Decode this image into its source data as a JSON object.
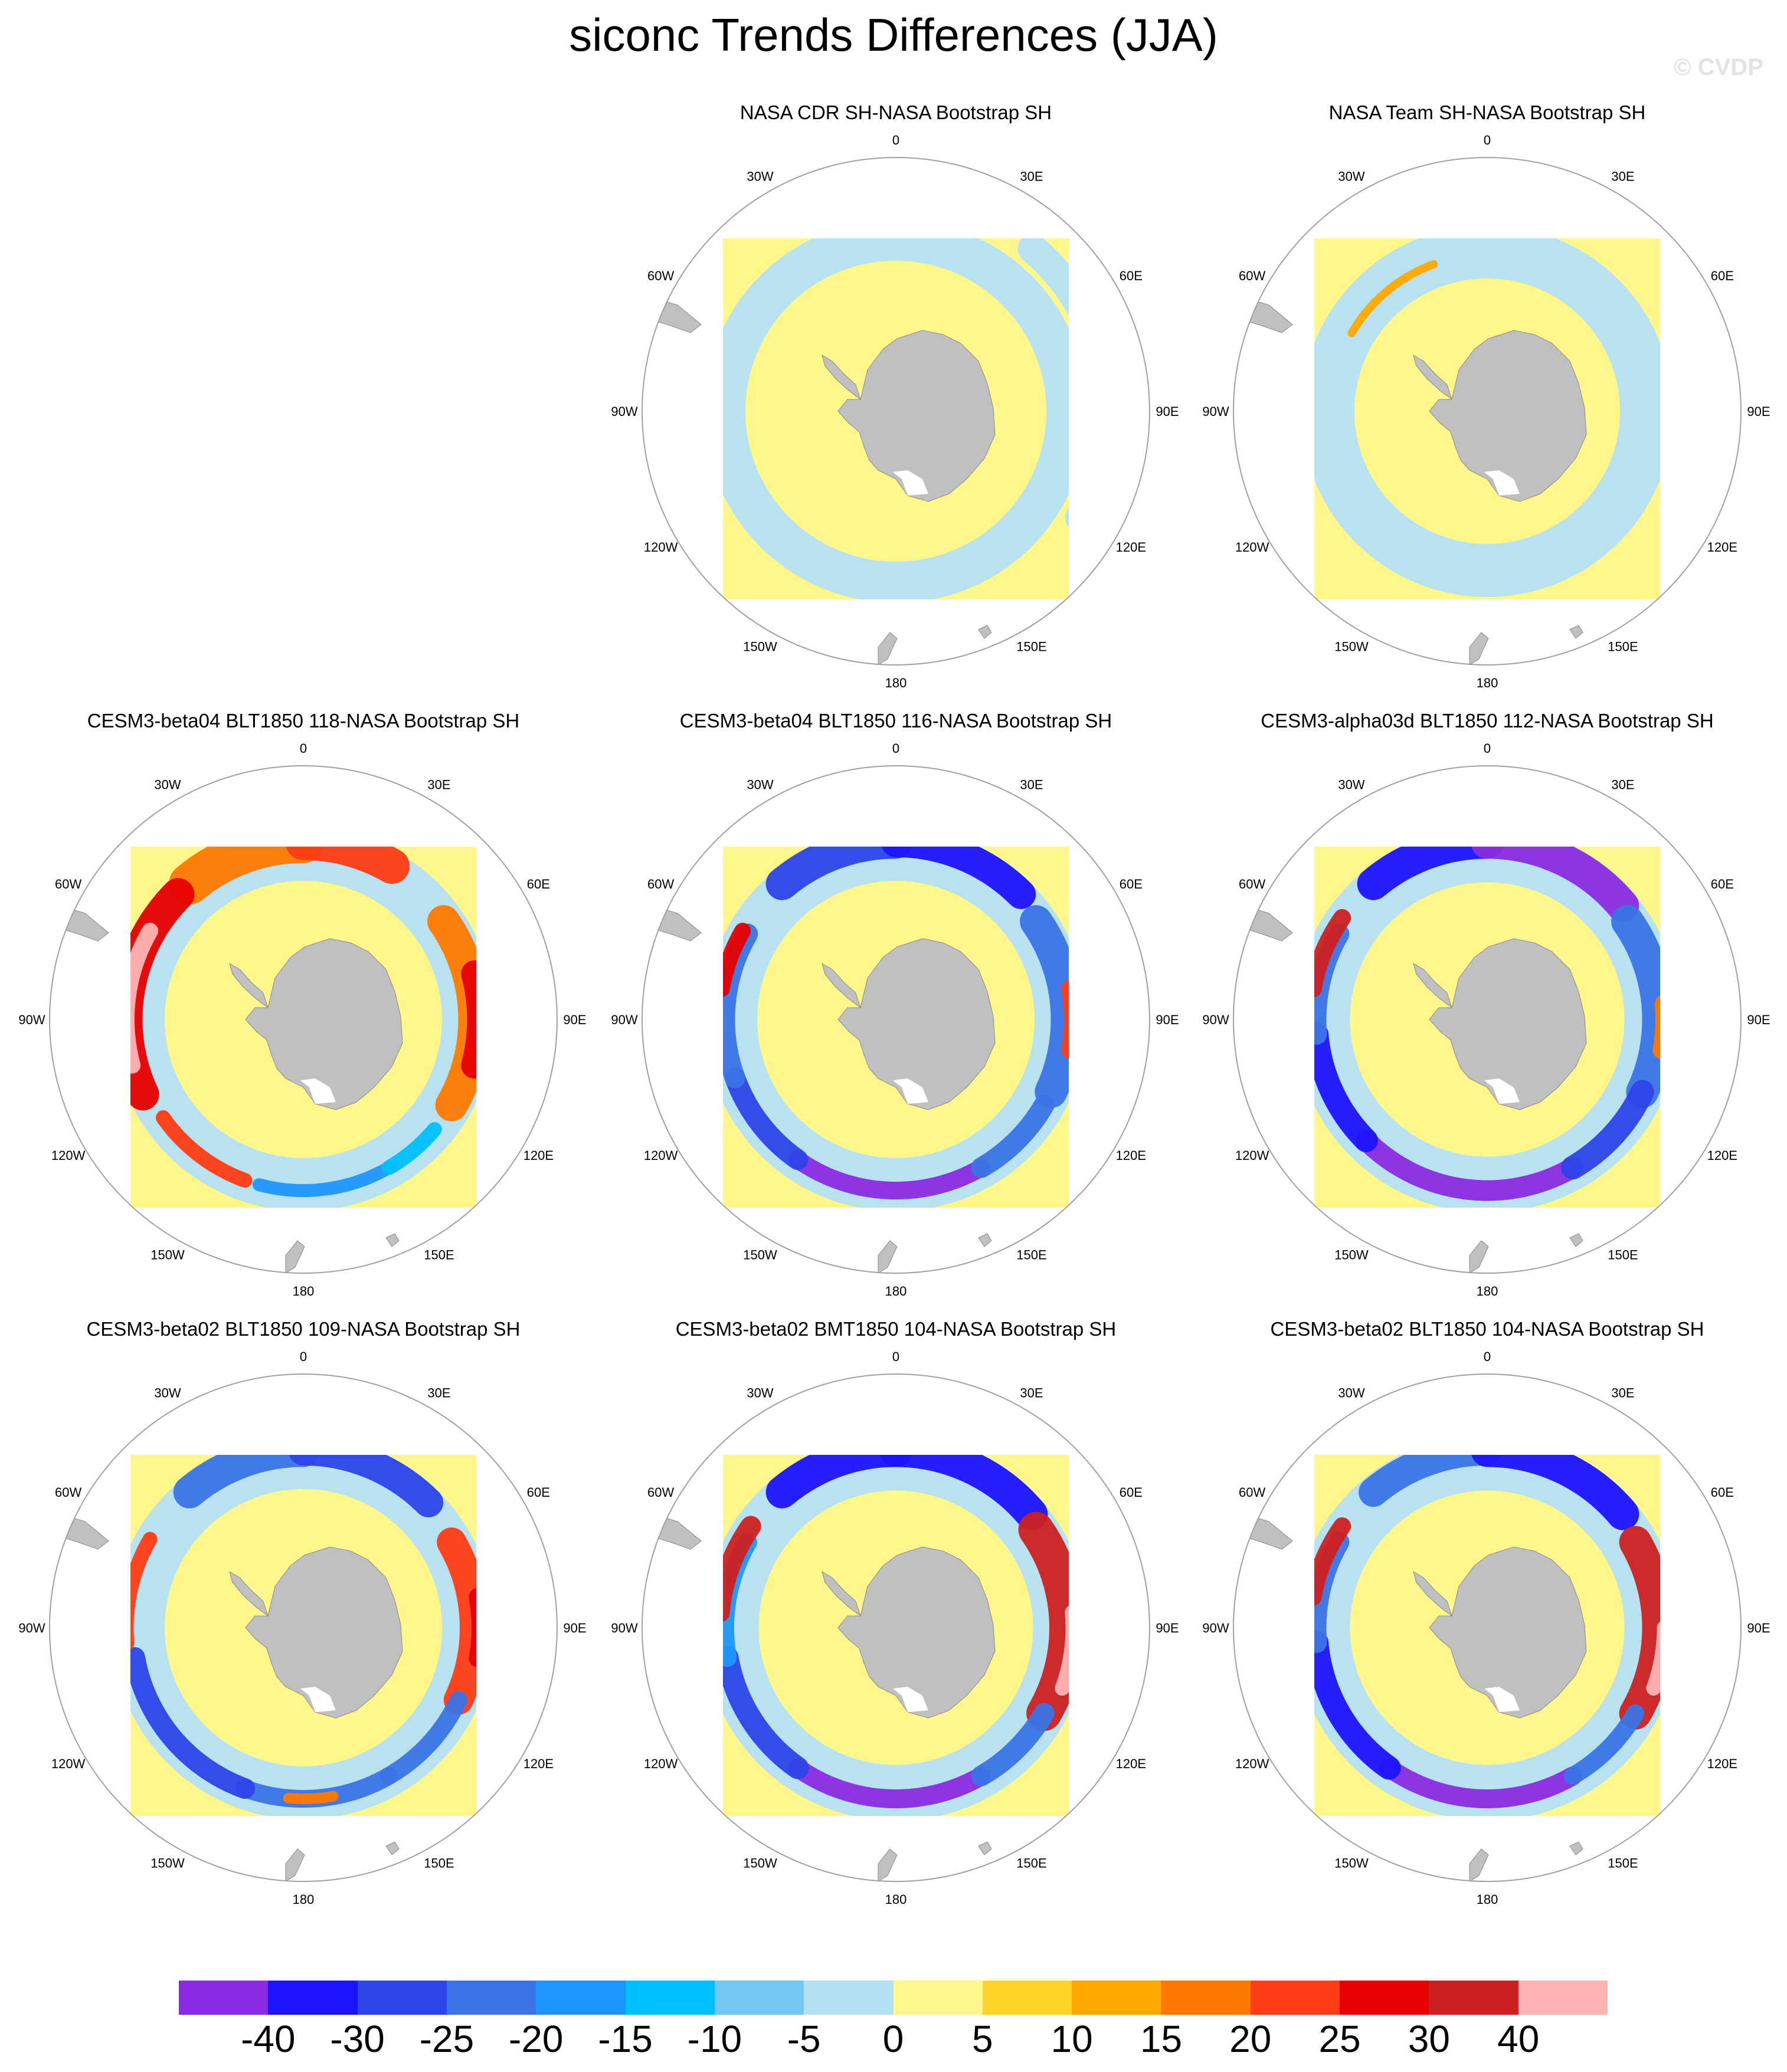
{
  "title": "siconc Trends Differences (JJA)",
  "credit": "© CVDP",
  "lon_labels": [
    "0",
    "30E",
    "60E",
    "90E",
    "120E",
    "150E",
    "180",
    "150W",
    "120W",
    "90W",
    "60W",
    "30W"
  ],
  "panels": [
    {
      "title": "NASA CDR SH-NASA Bootstrap SH",
      "pattern": "weak"
    },
    {
      "title": "NASA Team SH-NASA Bootstrap SH",
      "pattern": "weak-band"
    },
    {
      "title": "CESM3-beta04 BLT1850 118-NASA Bootstrap SH",
      "pattern": "positive"
    },
    {
      "title": "CESM3-beta04 BLT1850 116-NASA Bootstrap SH",
      "pattern": "negative"
    },
    {
      "title": "CESM3-alpha03d BLT1850 112-NASA Bootstrap SH",
      "pattern": "strong-negative"
    },
    {
      "title": "CESM3-beta02 BLT1850 109-NASA Bootstrap SH",
      "pattern": "mixed"
    },
    {
      "title": "CESM3-beta02 BMT1850 104-NASA Bootstrap SH",
      "pattern": "mixed-strong"
    },
    {
      "title": "CESM3-beta02 BLT1850 104-NASA Bootstrap SH",
      "pattern": "mixed-negative"
    }
  ],
  "colorbar": {
    "colors": [
      "#8a2be2",
      "#1c14ff",
      "#2c44e8",
      "#3a74e6",
      "#1e96ff",
      "#00bfff",
      "#72c8f0",
      "#b4e0f4",
      "#fff68c",
      "#ffd42a",
      "#ffa800",
      "#ff7800",
      "#ff3c14",
      "#e60000",
      "#cd2020",
      "#ffb4b4"
    ],
    "labels": [
      "-40",
      "-30",
      "-25",
      "-20",
      "-15",
      "-10",
      "-5",
      "0",
      "5",
      "10",
      "15",
      "20",
      "25",
      "30",
      "40"
    ]
  },
  "colors": {
    "land": "#c0c0c0",
    "background_field": "#fff68c",
    "circle": "#a0a0a0"
  }
}
